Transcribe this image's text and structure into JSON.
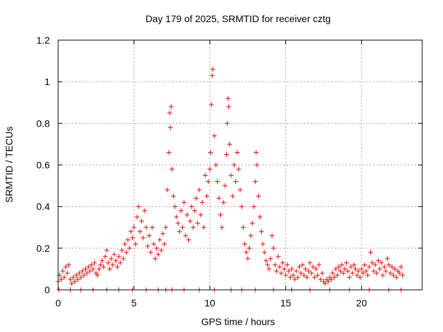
{
  "chart_data": {
    "type": "scatter",
    "title": "Day 179 of 2025, SRMTID for receiver cztg",
    "xlabel": "GPS time / hours",
    "ylabel": "SRMTID / TECUs",
    "xlim": [
      0,
      24
    ],
    "ylim": [
      0,
      1.2
    ],
    "xticks": [
      0,
      5,
      10,
      15,
      20
    ],
    "xtick_labels": [
      "0",
      "5",
      "10",
      "15",
      "20"
    ],
    "yticks": [
      0,
      0.2,
      0.4,
      0.6,
      0.8,
      1.0,
      1.2
    ],
    "ytick_labels": [
      "0",
      "0.2",
      "0.4",
      "0.6",
      "0.8",
      "1",
      "1.2"
    ],
    "grid": true,
    "marker": "+",
    "color": "#ee0000",
    "series": [
      {
        "name": "SRMTID",
        "points": [
          [
            0.0,
            0.04
          ],
          [
            0.1,
            0.07
          ],
          [
            0.2,
            0.05
          ],
          [
            0.3,
            0.09
          ],
          [
            0.4,
            0.06
          ],
          [
            0.5,
            0.11
          ],
          [
            0.6,
            0.08
          ],
          [
            0.7,
            0.12
          ],
          [
            0.8,
            0.05
          ],
          [
            0.9,
            0.03
          ],
          [
            1.0,
            0.06
          ],
          [
            1.1,
            0.04
          ],
          [
            1.2,
            0.07
          ],
          [
            1.3,
            0.05
          ],
          [
            1.4,
            0.08
          ],
          [
            1.5,
            0.06
          ],
          [
            1.6,
            0.09
          ],
          [
            1.7,
            0.07
          ],
          [
            1.8,
            0.1
          ],
          [
            1.9,
            0.08
          ],
          [
            2.0,
            0.11
          ],
          [
            2.1,
            0.09
          ],
          [
            2.2,
            0.12
          ],
          [
            2.3,
            0.1
          ],
          [
            2.4,
            0.13
          ],
          [
            2.5,
            0.08
          ],
          [
            2.6,
            0.07
          ],
          [
            2.7,
            0.1
          ],
          [
            2.8,
            0.12
          ],
          [
            2.9,
            0.14
          ],
          [
            3.0,
            0.11
          ],
          [
            3.1,
            0.16
          ],
          [
            3.2,
            0.19
          ],
          [
            3.3,
            0.13
          ],
          [
            3.4,
            0.1
          ],
          [
            3.5,
            0.15
          ],
          [
            3.6,
            0.12
          ],
          [
            3.7,
            0.17
          ],
          [
            3.8,
            0.14
          ],
          [
            3.9,
            0.11
          ],
          [
            4.0,
            0.16
          ],
          [
            4.1,
            0.13
          ],
          [
            4.2,
            0.19
          ],
          [
            4.3,
            0.15
          ],
          [
            4.4,
            0.22
          ],
          [
            4.5,
            0.18
          ],
          [
            4.6,
            0.24
          ],
          [
            4.7,
            0.2
          ],
          [
            4.8,
            0.28
          ],
          [
            4.9,
            0.25
          ],
          [
            5.0,
            0.3
          ],
          [
            5.1,
            0.22
          ],
          [
            5.2,
            0.35
          ],
          [
            5.3,
            0.4
          ],
          [
            5.4,
            0.28
          ],
          [
            5.5,
            0.33
          ],
          [
            5.6,
            0.25
          ],
          [
            5.7,
            0.38
          ],
          [
            5.8,
            0.3
          ],
          [
            5.9,
            0.21
          ],
          [
            6.0,
            0.26
          ],
          [
            6.1,
            0.18
          ],
          [
            6.2,
            0.3
          ],
          [
            6.3,
            0.22
          ],
          [
            6.4,
            0.15
          ],
          [
            6.5,
            0.2
          ],
          [
            6.6,
            0.17
          ],
          [
            6.7,
            0.24
          ],
          [
            6.8,
            0.19
          ],
          [
            6.9,
            0.27
          ],
          [
            7.0,
            0.22
          ],
          [
            7.1,
            0.3
          ],
          [
            7.2,
            0.48
          ],
          [
            7.3,
            0.66
          ],
          [
            7.35,
            0.85
          ],
          [
            7.4,
            0.78
          ],
          [
            7.45,
            0.88
          ],
          [
            7.5,
            0.58
          ],
          [
            7.6,
            0.45
          ],
          [
            7.7,
            0.4
          ],
          [
            7.8,
            0.35
          ],
          [
            7.9,
            0.32
          ],
          [
            8.0,
            0.28
          ],
          [
            8.1,
            0.38
          ],
          [
            8.2,
            0.3
          ],
          [
            8.3,
            0.42
          ],
          [
            8.4,
            0.26
          ],
          [
            8.5,
            0.36
          ],
          [
            8.6,
            0.24
          ],
          [
            8.7,
            0.33
          ],
          [
            8.8,
            0.4
          ],
          [
            8.9,
            0.3
          ],
          [
            9.0,
            0.38
          ],
          [
            9.1,
            0.44
          ],
          [
            9.2,
            0.32
          ],
          [
            9.3,
            0.48
          ],
          [
            9.4,
            0.36
          ],
          [
            9.5,
            0.42
          ],
          [
            9.6,
            0.3
          ],
          [
            9.7,
            0.55
          ],
          [
            9.8,
            0.45
          ],
          [
            9.9,
            0.52
          ],
          [
            10.0,
            0.58
          ],
          [
            10.05,
            0.66
          ],
          [
            10.1,
            0.89
          ],
          [
            10.15,
            1.03
          ],
          [
            10.2,
            1.06
          ],
          [
            10.3,
            0.74
          ],
          [
            10.4,
            0.6
          ],
          [
            10.5,
            0.52
          ],
          [
            10.6,
            0.44
          ],
          [
            10.7,
            0.36
          ],
          [
            10.8,
            0.3
          ],
          [
            10.9,
            0.42
          ],
          [
            11.0,
            0.5
          ],
          [
            11.1,
            0.65
          ],
          [
            11.15,
            0.8
          ],
          [
            11.2,
            0.92
          ],
          [
            11.25,
            0.88
          ],
          [
            11.3,
            0.7
          ],
          [
            11.4,
            0.55
          ],
          [
            11.5,
            0.45
          ],
          [
            11.6,
            0.6
          ],
          [
            11.7,
            0.52
          ],
          [
            11.8,
            0.66
          ],
          [
            11.9,
            0.58
          ],
          [
            12.0,
            0.48
          ],
          [
            12.1,
            0.4
          ],
          [
            12.2,
            0.3
          ],
          [
            12.3,
            0.22
          ],
          [
            12.4,
            0.18
          ],
          [
            12.5,
            0.15
          ],
          [
            12.6,
            0.2
          ],
          [
            12.7,
            0.26
          ],
          [
            12.8,
            0.32
          ],
          [
            12.9,
            0.4
          ],
          [
            13.0,
            0.52
          ],
          [
            13.05,
            0.66
          ],
          [
            13.1,
            0.6
          ],
          [
            13.2,
            0.45
          ],
          [
            13.3,
            0.35
          ],
          [
            13.4,
            0.28
          ],
          [
            13.5,
            0.22
          ],
          [
            13.6,
            0.18
          ],
          [
            13.7,
            0.14
          ],
          [
            13.8,
            0.12
          ],
          [
            13.9,
            0.1
          ],
          [
            14.0,
            0.15
          ],
          [
            14.1,
            0.26
          ],
          [
            14.2,
            0.2
          ],
          [
            14.3,
            0.12
          ],
          [
            14.4,
            0.09
          ],
          [
            14.5,
            0.16
          ],
          [
            14.6,
            0.11
          ],
          [
            14.7,
            0.08
          ],
          [
            14.8,
            0.13
          ],
          [
            14.9,
            0.1
          ],
          [
            15.0,
            0.07
          ],
          [
            15.1,
            0.12
          ],
          [
            15.2,
            0.09
          ],
          [
            15.3,
            0.06
          ],
          [
            15.4,
            0.1
          ],
          [
            15.5,
            0.07
          ],
          [
            15.6,
            0.05
          ],
          [
            15.7,
            0.09
          ],
          [
            15.8,
            0.06
          ],
          [
            15.9,
            0.11
          ],
          [
            16.0,
            0.08
          ],
          [
            16.1,
            0.12
          ],
          [
            16.2,
            0.07
          ],
          [
            16.3,
            0.1
          ],
          [
            16.4,
            0.06
          ],
          [
            16.5,
            0.09
          ],
          [
            16.6,
            0.13
          ],
          [
            16.7,
            0.08
          ],
          [
            16.8,
            0.11
          ],
          [
            16.9,
            0.06
          ],
          [
            17.0,
            0.1
          ],
          [
            17.1,
            0.07
          ],
          [
            17.2,
            0.12
          ],
          [
            17.3,
            0.05
          ],
          [
            17.4,
            0.08
          ],
          [
            17.5,
            0.04
          ],
          [
            17.6,
            0.03
          ],
          [
            17.7,
            0.05
          ],
          [
            17.8,
            0.04
          ],
          [
            17.9,
            0.06
          ],
          [
            18.0,
            0.05
          ],
          [
            18.1,
            0.08
          ],
          [
            18.2,
            0.06
          ],
          [
            18.3,
            0.1
          ],
          [
            18.4,
            0.07
          ],
          [
            18.5,
            0.11
          ],
          [
            18.6,
            0.09
          ],
          [
            18.7,
            0.12
          ],
          [
            18.8,
            0.08
          ],
          [
            18.9,
            0.1
          ],
          [
            19.0,
            0.13
          ],
          [
            19.1,
            0.09
          ],
          [
            19.2,
            0.06
          ],
          [
            19.3,
            0.11
          ],
          [
            19.4,
            0.08
          ],
          [
            19.5,
            0.12
          ],
          [
            19.6,
            0.1
          ],
          [
            19.7,
            0.07
          ],
          [
            19.8,
            0.09
          ],
          [
            19.9,
            0.06
          ],
          [
            20.0,
            0.1
          ],
          [
            20.1,
            0.08
          ],
          [
            20.2,
            0.12
          ],
          [
            20.3,
            0.09
          ],
          [
            20.4,
            0.07
          ],
          [
            20.5,
            0.11
          ],
          [
            20.6,
            0.18
          ],
          [
            20.7,
            0.13
          ],
          [
            20.8,
            0.09
          ],
          [
            20.9,
            0.12
          ],
          [
            21.0,
            0.08
          ],
          [
            21.1,
            0.14
          ],
          [
            21.2,
            0.1
          ],
          [
            21.3,
            0.13
          ],
          [
            21.4,
            0.07
          ],
          [
            21.5,
            0.11
          ],
          [
            21.6,
            0.09
          ],
          [
            21.7,
            0.15
          ],
          [
            21.8,
            0.12
          ],
          [
            21.9,
            0.08
          ],
          [
            22.0,
            0.11
          ],
          [
            22.1,
            0.07
          ],
          [
            22.2,
            0.1
          ],
          [
            22.3,
            0.06
          ],
          [
            22.4,
            0.09
          ],
          [
            22.5,
            0.08
          ],
          [
            22.6,
            0.11
          ],
          [
            22.7,
            0.07
          ],
          [
            0.05,
            0.0
          ],
          [
            0.8,
            0.0
          ],
          [
            1.5,
            0.0
          ],
          [
            2.3,
            0.0
          ],
          [
            3.2,
            0.0
          ],
          [
            4.0,
            0.0
          ],
          [
            4.9,
            0.0
          ],
          [
            5.8,
            0.0
          ],
          [
            6.6,
            0.0
          ],
          [
            7.1,
            0.0
          ],
          [
            7.5,
            0.0
          ],
          [
            8.3,
            0.0
          ],
          [
            9.3,
            0.0
          ],
          [
            10.3,
            0.0
          ],
          [
            11.4,
            0.0
          ],
          [
            12.1,
            0.0
          ],
          [
            13.0,
            0.0
          ],
          [
            14.2,
            0.0
          ],
          [
            15.4,
            0.0
          ],
          [
            16.6,
            0.0
          ],
          [
            17.9,
            0.0
          ],
          [
            19.2,
            0.0
          ],
          [
            20.5,
            0.0
          ],
          [
            21.8,
            0.0
          ],
          [
            22.6,
            0.0
          ]
        ]
      }
    ]
  }
}
